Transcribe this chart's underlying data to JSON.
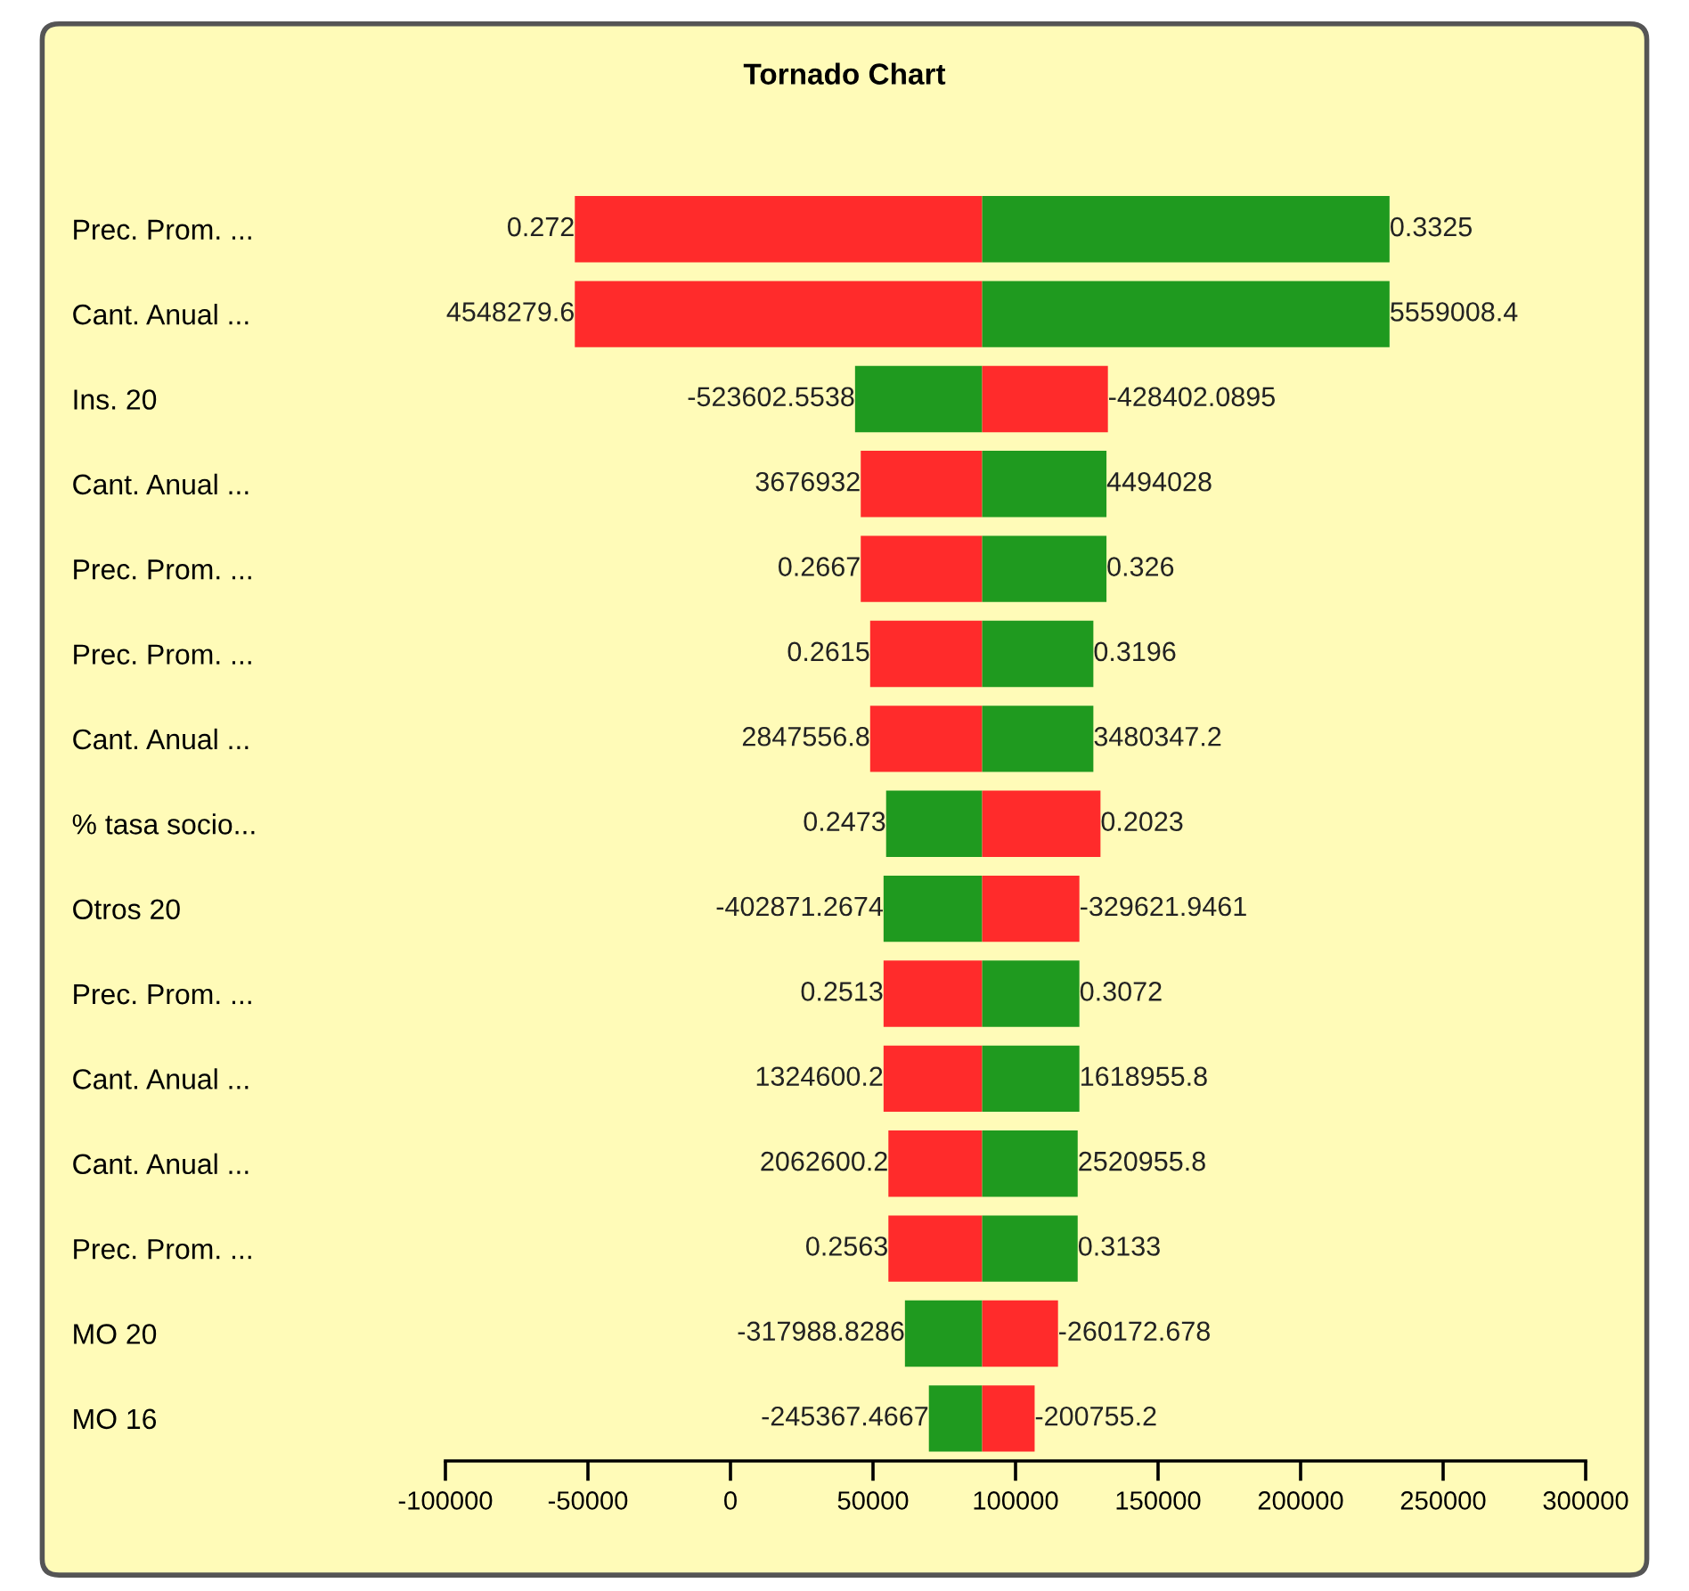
{
  "chart_data": {
    "type": "bar",
    "orientation": "horizontal",
    "title": "Tornado Chart",
    "categories": [
      "Prec. Prom. ...",
      "Cant. Anual ...",
      "Ins. 20",
      "Cant. Anual ...",
      "Prec. Prom. ...",
      "Prec. Prom. ...",
      "Cant. Anual ...",
      "% tasa socio...",
      "Otros 20",
      "Prec. Prom. ...",
      "Cant. Anual ...",
      "Cant. Anual ...",
      "Prec. Prom. ...",
      "MO 20",
      "MO 16"
    ],
    "series": [
      {
        "base": [
          -54600,
          -54600,
          43700,
          45700,
          45700,
          49000,
          49000,
          54600,
          53700,
          53700,
          53700,
          55400,
          55400,
          61200,
          69600
        ],
        "values": [
          142900,
          142900,
          44600,
          42600,
          42600,
          39300,
          39300,
          33700,
          34600,
          34600,
          34600,
          32900,
          32900,
          27100,
          18700
        ],
        "colors": [
          "#ff2b2b",
          "#ff2b2b",
          "#1f9a1f",
          "#ff2b2b",
          "#ff2b2b",
          "#ff2b2b",
          "#ff2b2b",
          "#1f9a1f",
          "#1f9a1f",
          "#ff2b2b",
          "#ff2b2b",
          "#ff2b2b",
          "#ff2b2b",
          "#1f9a1f",
          "#1f9a1f"
        ]
      },
      {
        "base": [
          88300,
          88300,
          88300,
          88300,
          88300,
          88300,
          88300,
          88300,
          88300,
          88300,
          88300,
          88300,
          88300,
          88300,
          88300
        ],
        "values": [
          142900,
          142900,
          44100,
          43600,
          43600,
          39000,
          39000,
          41500,
          34100,
          34100,
          34100,
          33500,
          33500,
          26600,
          18400
        ],
        "colors": [
          "#1f9a1f",
          "#1f9a1f",
          "#ff2b2b",
          "#1f9a1f",
          "#1f9a1f",
          "#1f9a1f",
          "#1f9a1f",
          "#ff2b2b",
          "#ff2b2b",
          "#1f9a1f",
          "#1f9a1f",
          "#1f9a1f",
          "#1f9a1f",
          "#ff2b2b",
          "#ff2b2b"
        ]
      }
    ],
    "annotations": [
      {
        "text": "0.272",
        "x": -54600
      },
      {
        "text": "0.3325",
        "x": 231200
      },
      {
        "text": "4548279.6",
        "x": -54600
      },
      {
        "text": "5559008.4",
        "x": 231200
      },
      {
        "text": "-523602.5538",
        "x": 43700
      },
      {
        "text": "-428402.0895",
        "x": 132400
      },
      {
        "text": "3676932",
        "x": 45700
      },
      {
        "text": "4494028",
        "x": 131900
      },
      {
        "text": "0.2667",
        "x": 45700
      },
      {
        "text": "0.326",
        "x": 131900
      },
      {
        "text": "0.2615",
        "x": 49000
      },
      {
        "text": "0.3196",
        "x": 127300
      },
      {
        "text": "2847556.8",
        "x": 49000
      },
      {
        "text": "3480347.2",
        "x": 127300
      },
      {
        "text": "0.2473",
        "x": 54600
      },
      {
        "text": "0.2023",
        "x": 129800
      },
      {
        "text": "-402871.2674",
        "x": 53700
      },
      {
        "text": "-329621.9461",
        "x": 122400
      },
      {
        "text": "0.2513",
        "x": 53700
      },
      {
        "text": "0.3072",
        "x": 122400
      },
      {
        "text": "1324600.2",
        "x": 53700
      },
      {
        "text": "1618955.8",
        "x": 122400
      },
      {
        "text": "2062600.2",
        "x": 55400
      },
      {
        "text": "2520955.8",
        "x": 121800
      },
      {
        "text": "0.2563",
        "x": 55400
      },
      {
        "text": "0.3133",
        "x": 121800
      },
      {
        "text": "-317988.8286",
        "x": 61200
      },
      {
        "text": "-260172.678",
        "x": 114900
      },
      {
        "text": "-245367.4667",
        "x": 69600
      },
      {
        "text": "-200755.2",
        "x": 106700
      }
    ],
    "xlim": [
      -100000,
      300000
    ],
    "xticks": [
      -100000,
      -50000,
      0,
      50000,
      100000,
      150000,
      200000,
      250000,
      300000
    ]
  }
}
